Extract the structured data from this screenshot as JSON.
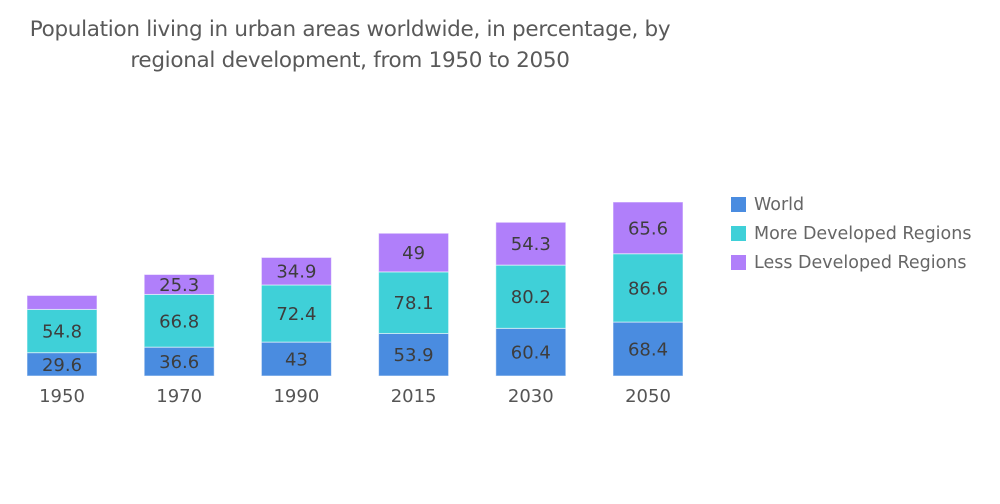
{
  "chart_data": {
    "type": "bar",
    "stacked": true,
    "title": "Population living in urban areas worldwide, in percentage, by regional development, from 1950 to 2050",
    "title_lines": [
      "Population living in urban areas worldwide, in percentage, by",
      "regional development, from 1950 to 2050"
    ],
    "xlabel": "",
    "ylabel": "",
    "categories": [
      "1950",
      "1970",
      "1990",
      "2015",
      "2030",
      "2050"
    ],
    "series": [
      {
        "name": "World",
        "color": "#4a8ce0",
        "values": [
          29.6,
          36.6,
          43,
          53.9,
          60.4,
          68.4
        ],
        "labels": [
          "29.6",
          "36.6",
          "43",
          "53.9",
          "60.4",
          "68.4"
        ]
      },
      {
        "name": "More Developed Regions",
        "color": "#3fd0d8",
        "values": [
          54.8,
          66.8,
          72.4,
          78.1,
          80.2,
          86.6
        ],
        "labels": [
          "54.8",
          "66.8",
          "72.4",
          "78.1",
          "80.2",
          "86.6"
        ]
      },
      {
        "name": "Less Developed Regions",
        "color": "#b07ffa",
        "values": [
          17.7,
          25.3,
          34.9,
          49,
          54.3,
          65.6
        ],
        "labels": [
          "",
          "25.3",
          "34.9",
          "49",
          "54.3",
          "65.6"
        ]
      }
    ],
    "ylim": [
      0,
      220.6
    ],
    "grid": false,
    "y_axis_visible": false,
    "legend_position": "right"
  }
}
